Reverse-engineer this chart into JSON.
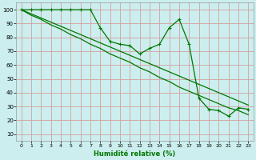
{
  "x": [
    0,
    1,
    2,
    3,
    4,
    5,
    6,
    7,
    8,
    9,
    10,
    11,
    12,
    13,
    14,
    15,
    16,
    17,
    18,
    19,
    20,
    21,
    22,
    23
  ],
  "line_main": [
    100,
    100,
    100,
    100,
    100,
    100,
    100,
    100,
    87,
    77,
    75,
    74,
    68,
    72,
    75,
    87,
    93,
    75,
    36,
    28,
    27,
    23,
    29,
    28
  ],
  "line_trend_top": [
    100,
    97,
    94,
    91,
    88,
    85,
    82,
    79,
    76,
    73,
    70,
    67,
    64,
    61,
    58,
    55,
    52,
    49,
    46,
    43,
    40,
    37,
    34,
    31
  ],
  "line_trend_bot": [
    100,
    96,
    93,
    89,
    86,
    82,
    79,
    75,
    72,
    68,
    65,
    62,
    58,
    55,
    51,
    48,
    44,
    41,
    38,
    35,
    32,
    29,
    27,
    24
  ],
  "xlabel": "Humidité relative (%)",
  "xlim": [
    -0.5,
    23.5
  ],
  "ylim": [
    5,
    105
  ],
  "yticks": [
    10,
    20,
    30,
    40,
    50,
    60,
    70,
    80,
    90,
    100
  ],
  "xticks": [
    0,
    1,
    2,
    3,
    4,
    5,
    6,
    7,
    8,
    9,
    10,
    11,
    12,
    13,
    14,
    15,
    16,
    17,
    18,
    19,
    20,
    21,
    22,
    23
  ],
  "line_color": "#007700",
  "bg_color": "#cceeee",
  "grid_color": "#d4a0a0",
  "fig_bg": "#cceeee"
}
